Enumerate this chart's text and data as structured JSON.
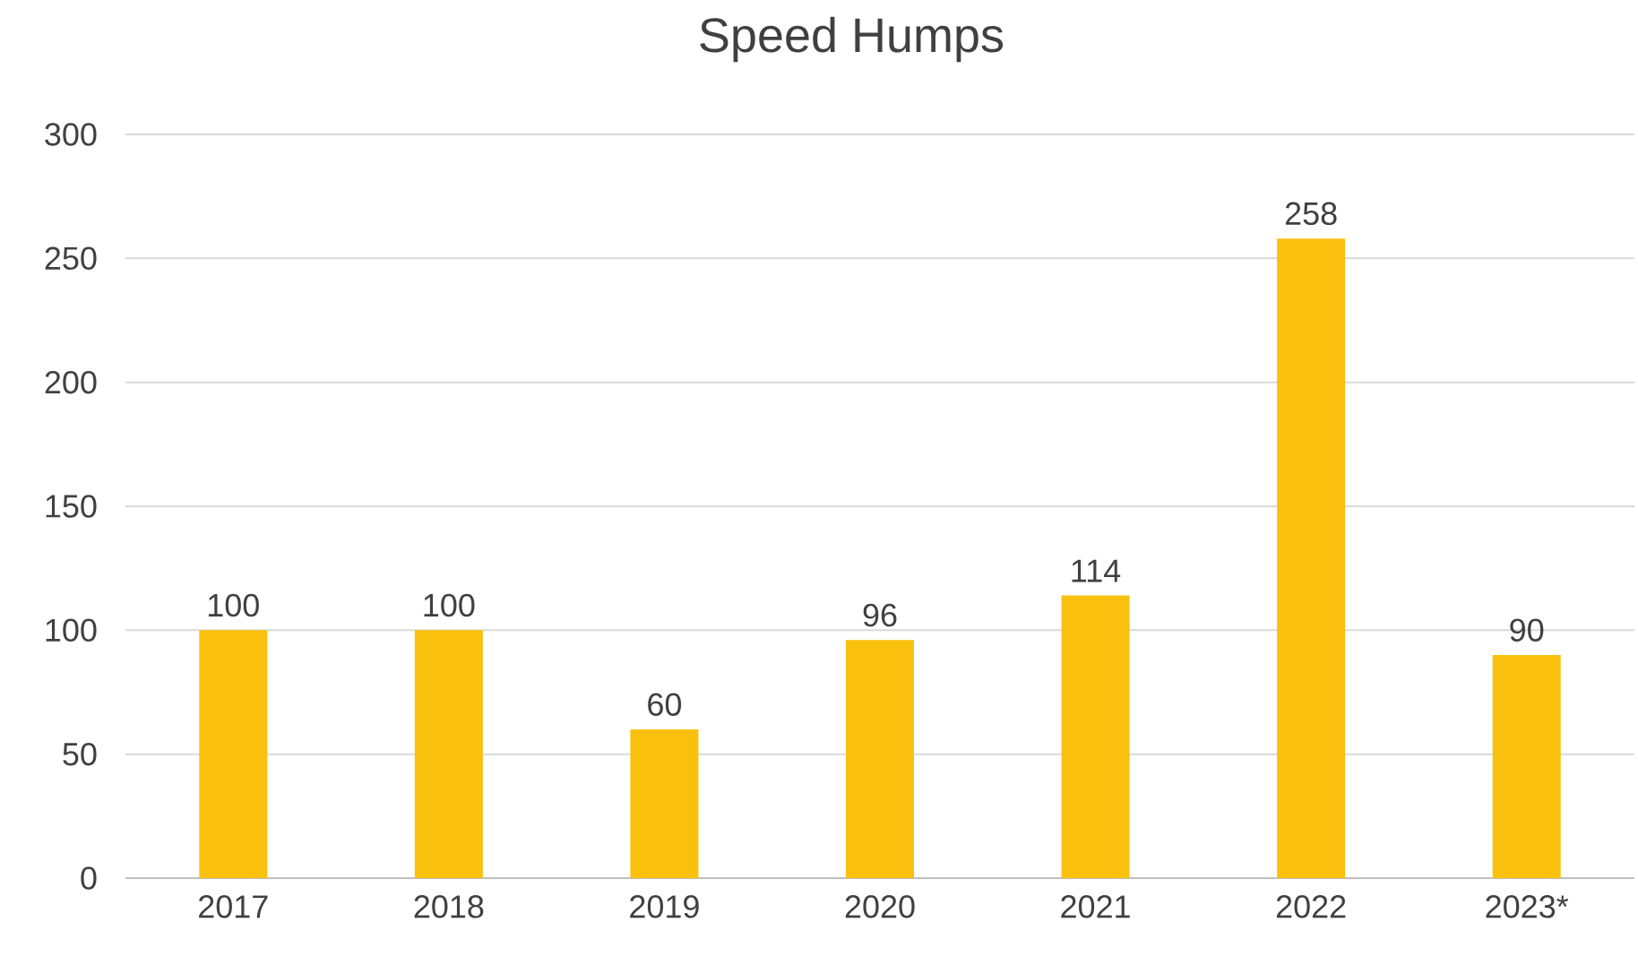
{
  "chart_data": {
    "type": "bar",
    "title": "Speed Humps",
    "categories": [
      "2017",
      "2018",
      "2019",
      "2020",
      "2021",
      "2022",
      "2023*"
    ],
    "values": [
      100,
      100,
      60,
      96,
      114,
      258,
      90
    ],
    "color": "#f9c10e",
    "ylim": [
      0,
      300
    ],
    "yticks": [
      0,
      50,
      100,
      150,
      200,
      250,
      300
    ],
    "grid": "y",
    "data_labels": true
  }
}
